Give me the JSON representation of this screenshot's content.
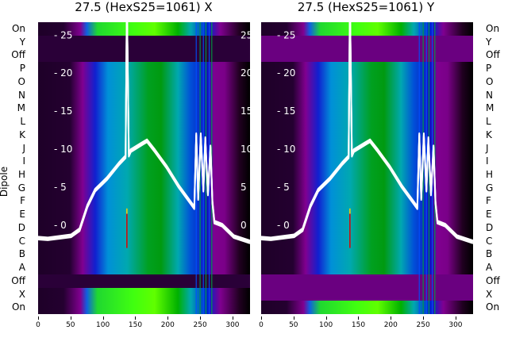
{
  "chart_data": [
    {
      "type": "heatmap",
      "title": "27.5 (HexS25=1061) X",
      "ylabel": "Dipole",
      "row_labels": [
        "On",
        "Y",
        "Off",
        "P",
        "O",
        "N",
        "M",
        "L",
        "K",
        "J",
        "I",
        "H",
        "G",
        "F",
        "E",
        "D",
        "C",
        "B",
        "A",
        "Off",
        "X",
        "On"
      ],
      "row_kinds": [
        "on",
        "off",
        "off",
        "bpm",
        "bpm",
        "bpm",
        "bpm",
        "bpm",
        "bpm",
        "bpm",
        "bpm",
        "bpm",
        "bpm",
        "bpm",
        "bpm",
        "bpm",
        "bpm",
        "bpm",
        "bpm",
        "off",
        "on",
        "on"
      ],
      "x_ticks": [
        0,
        50,
        100,
        150,
        200,
        250,
        300
      ],
      "xlim": [
        0,
        327
      ],
      "overlay_y_ticks": [
        0,
        5,
        10,
        15,
        20,
        25
      ],
      "overlay_ylim": [
        -11.7,
        26.7
      ],
      "overlay_line": {
        "x": [
          0,
          15,
          51,
          64,
          76,
          88,
          106,
          125,
          135,
          137,
          140,
          143,
          162,
          168,
          180,
          198,
          217,
          235,
          241,
          244,
          247,
          251,
          255,
          258,
          262,
          266,
          269,
          272,
          284,
          302,
          327
        ],
        "y": [
          -1.7,
          -1.8,
          -1.4,
          -0.6,
          2.5,
          4.6,
          6.1,
          8.1,
          9,
          30,
          9.2,
          9.8,
          10.8,
          11.1,
          9.8,
          7.7,
          5.1,
          3,
          2.3,
          11.9,
          3.5,
          11.9,
          4.6,
          11.4,
          4.1,
          10.3,
          3,
          0.4,
          0,
          -1.5,
          -2.2
        ]
      },
      "off_color": "#2a0038"
    },
    {
      "type": "heatmap",
      "title": "27.5 (HexS25=1061) Y",
      "row_labels": [
        "On",
        "Y",
        "Off",
        "P",
        "O",
        "N",
        "M",
        "L",
        "K",
        "J",
        "I",
        "H",
        "G",
        "F",
        "E",
        "D",
        "C",
        "B",
        "A",
        "Off",
        "X",
        "On"
      ],
      "row_kinds": [
        "on",
        "off",
        "off",
        "bpm",
        "bpm",
        "bpm",
        "bpm",
        "bpm",
        "bpm",
        "bpm",
        "bpm",
        "bpm",
        "bpm",
        "bpm",
        "bpm",
        "bpm",
        "bpm",
        "bpm",
        "bpm",
        "off",
        "off",
        "on"
      ],
      "x_ticks": [
        0,
        50,
        100,
        150,
        200,
        250,
        300
      ],
      "xlim": [
        0,
        327
      ],
      "overlay_y_ticks": [
        0,
        5,
        10,
        15,
        20,
        25
      ],
      "overlay_ylim": [
        -11.7,
        26.7
      ],
      "overlay_line": {
        "x": [
          0,
          15,
          51,
          64,
          76,
          88,
          106,
          125,
          135,
          137,
          140,
          143,
          162,
          168,
          180,
          198,
          217,
          235,
          241,
          244,
          247,
          251,
          255,
          258,
          262,
          266,
          269,
          272,
          284,
          302,
          327
        ],
        "y": [
          -1.7,
          -1.8,
          -1.4,
          -0.6,
          2.5,
          4.6,
          6.1,
          8.1,
          9,
          30,
          9.2,
          9.8,
          10.8,
          11.1,
          9.8,
          7.7,
          5.1,
          3,
          2.3,
          11.9,
          3.5,
          11.9,
          4.6,
          11.4,
          4.1,
          10.3,
          3,
          0.4,
          0,
          -1.5,
          -2.2
        ]
      },
      "off_color": "#6a0080"
    }
  ]
}
